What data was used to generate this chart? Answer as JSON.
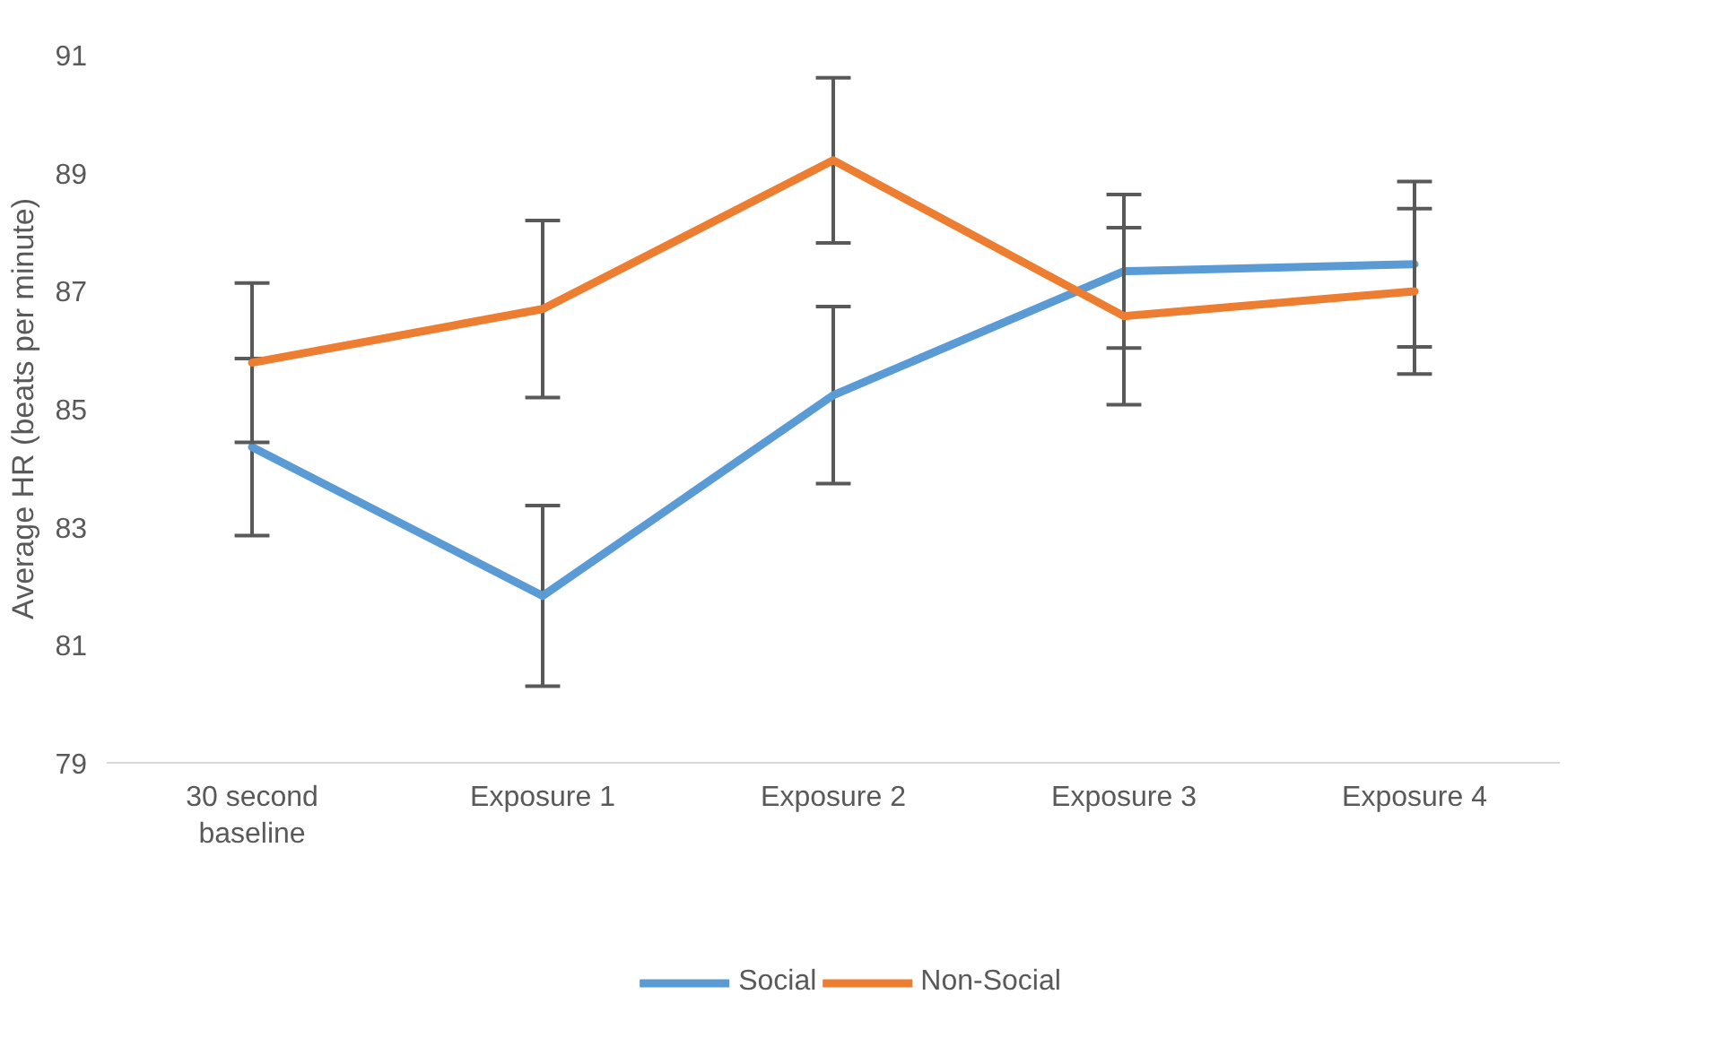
{
  "chart_data": {
    "type": "line",
    "ylabel": "Average HR (beats per minute)",
    "categories": [
      "30 second\nbaseline",
      "Exposure 1",
      "Exposure 2",
      "Exposure 3",
      "Exposure 4"
    ],
    "ylim": [
      79,
      91
    ],
    "yticks": [
      79,
      81,
      83,
      85,
      87,
      89,
      91
    ],
    "grid": false,
    "legend": "bottom",
    "marker": "none",
    "line_style": "solid",
    "series": [
      {
        "name": "Social",
        "color": "#5b9bd5",
        "values": [
          84.35,
          81.83,
          85.23,
          87.33,
          87.45
        ],
        "errors": [
          1.5,
          1.53,
          1.5,
          1.3,
          1.4
        ]
      },
      {
        "name": "Non-Social",
        "color": "#ed7d31",
        "values": [
          85.78,
          86.69,
          89.21,
          86.57,
          86.99
        ],
        "errors": [
          1.35,
          1.5,
          1.4,
          1.5,
          1.4
        ]
      }
    ]
  }
}
